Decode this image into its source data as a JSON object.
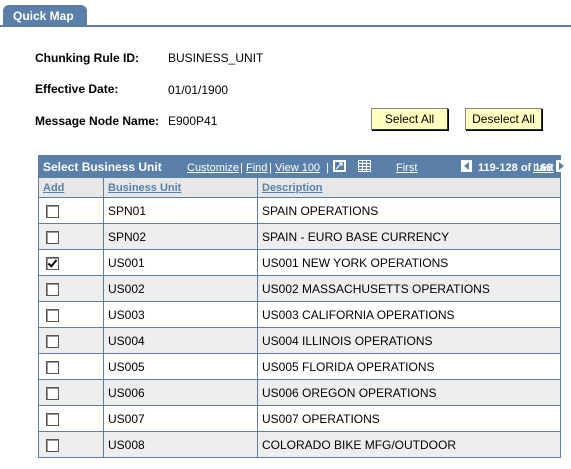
{
  "tab": {
    "label": "Quick Map"
  },
  "fields": {
    "chunking_rule_label": "Chunking Rule ID:",
    "chunking_rule_value": "BUSINESS_UNIT",
    "effective_date_label": "Effective Date:",
    "effective_date_value": "01/01/1900",
    "message_node_label": "Message Node Name:",
    "message_node_value": "E900P41"
  },
  "buttons": {
    "select_all": "Select All",
    "deselect_all": "Deselect All"
  },
  "grid": {
    "title": "Select Business Unit",
    "customize": "Customize",
    "find": "Find",
    "view": "View 100",
    "separator": "|",
    "first": "First",
    "range": "119-128 of 168",
    "last": "Last",
    "columns": {
      "add": "Add",
      "business_unit": "Business Unit",
      "description": "Description"
    },
    "rows": [
      {
        "checked": false,
        "unit": "SPN01",
        "description": "SPAIN OPERATIONS"
      },
      {
        "checked": false,
        "unit": "SPN02",
        "description": "SPAIN - EURO BASE CURRENCY"
      },
      {
        "checked": true,
        "unit": "US001",
        "description": "US001 NEW YORK OPERATIONS"
      },
      {
        "checked": false,
        "unit": "US002",
        "description": "US002 MASSACHUSETTS OPERATIONS"
      },
      {
        "checked": false,
        "unit": "US003",
        "description": "US003 CALIFORNIA OPERATIONS"
      },
      {
        "checked": false,
        "unit": "US004",
        "description": "US004 ILLINOIS OPERATIONS"
      },
      {
        "checked": false,
        "unit": "US005",
        "description": "US005 FLORIDA OPERATIONS"
      },
      {
        "checked": false,
        "unit": "US006",
        "description": "US006 OREGON OPERATIONS"
      },
      {
        "checked": false,
        "unit": "US007",
        "description": "US007 OPERATIONS"
      },
      {
        "checked": false,
        "unit": "US008",
        "description": "COLORADO BIKE MFG/OUTDOOR"
      }
    ]
  },
  "icons": {
    "view_all": "view-all-icon",
    "download": "download-grid-icon",
    "prev": "previous-arrow-icon",
    "next": "next-arrow-icon"
  },
  "colors": {
    "accent": "#5a7fa8",
    "button_bg": "#ffffc0",
    "alt_row": "#eeeeee"
  }
}
